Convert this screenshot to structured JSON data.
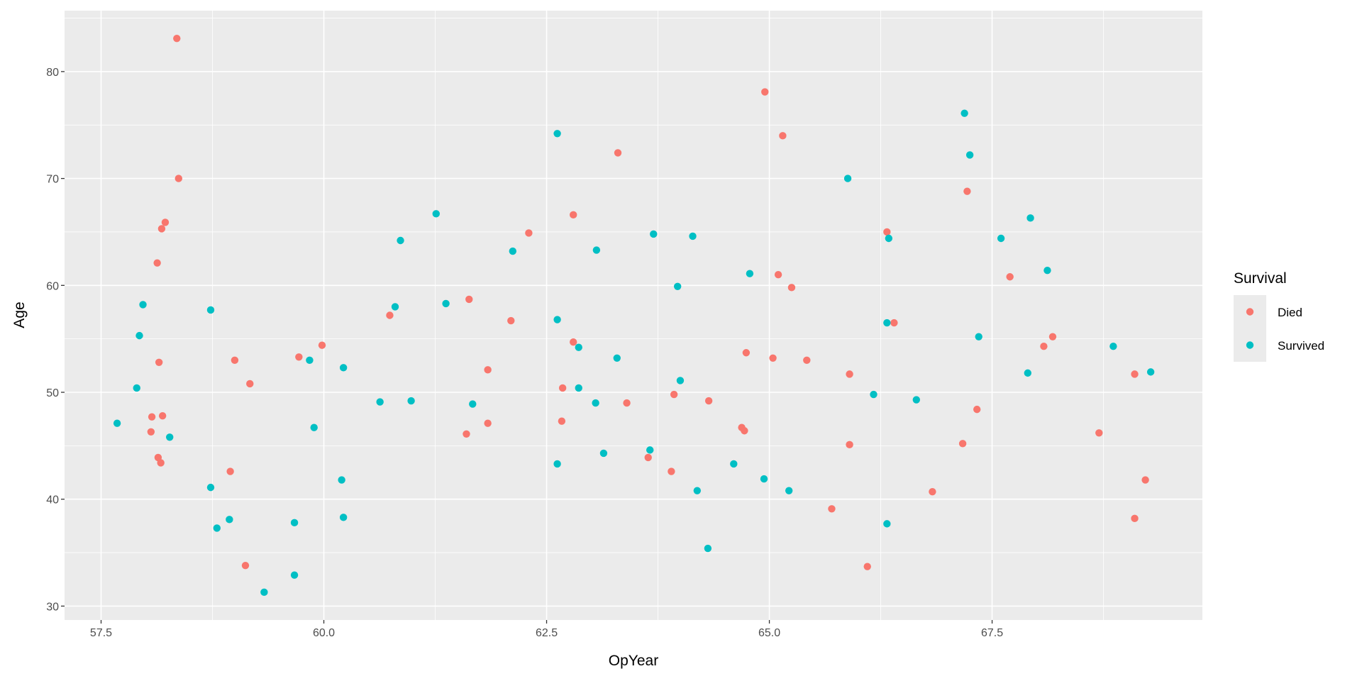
{
  "chart_data": {
    "type": "scatter",
    "title": "",
    "xlabel": "OpYear",
    "ylabel": "Age",
    "xlim": [
      57.09,
      69.86
    ],
    "ylim": [
      28.7,
      85.7
    ],
    "xticks": [
      57.5,
      60.0,
      62.5,
      65.0,
      67.5
    ],
    "xtick_labels": [
      "57.5",
      "60.0",
      "62.5",
      "65.0",
      "67.5"
    ],
    "yticks": [
      30,
      40,
      50,
      60,
      70,
      80
    ],
    "ytick_labels": [
      "30",
      "40",
      "50",
      "60",
      "70",
      "80"
    ],
    "grid": true,
    "legend": {
      "title": "Survival",
      "placement": "right"
    },
    "series": [
      {
        "name": "Died",
        "color": "#F8766D",
        "points": [
          [
            58.35,
            83.1
          ],
          [
            58.37,
            70.0
          ],
          [
            58.22,
            65.9
          ],
          [
            58.18,
            65.3
          ],
          [
            58.13,
            62.1
          ],
          [
            58.15,
            52.8
          ],
          [
            58.07,
            47.7
          ],
          [
            58.19,
            47.8
          ],
          [
            58.06,
            46.3
          ],
          [
            58.14,
            43.9
          ],
          [
            58.17,
            43.4
          ],
          [
            59.0,
            53.0
          ],
          [
            59.17,
            50.8
          ],
          [
            58.95,
            42.6
          ],
          [
            59.12,
            33.8
          ],
          [
            59.72,
            53.3
          ],
          [
            59.98,
            54.4
          ],
          [
            60.74,
            57.2
          ],
          [
            61.63,
            58.7
          ],
          [
            61.6,
            46.1
          ],
          [
            61.84,
            52.1
          ],
          [
            61.84,
            47.1
          ],
          [
            62.1,
            56.7
          ],
          [
            62.3,
            64.9
          ],
          [
            62.8,
            66.6
          ],
          [
            62.8,
            54.7
          ],
          [
            62.68,
            50.4
          ],
          [
            62.67,
            47.3
          ],
          [
            63.3,
            72.4
          ],
          [
            63.4,
            49.0
          ],
          [
            63.64,
            43.9
          ],
          [
            63.9,
            42.6
          ],
          [
            63.93,
            49.8
          ],
          [
            64.32,
            49.2
          ],
          [
            64.69,
            46.7
          ],
          [
            64.72,
            46.4
          ],
          [
            64.74,
            53.7
          ],
          [
            64.95,
            78.1
          ],
          [
            65.15,
            74.0
          ],
          [
            65.1,
            61.0
          ],
          [
            65.25,
            59.8
          ],
          [
            65.04,
            53.2
          ],
          [
            65.42,
            53.0
          ],
          [
            65.9,
            51.7
          ],
          [
            65.9,
            45.1
          ],
          [
            65.7,
            39.1
          ],
          [
            66.1,
            33.7
          ],
          [
            66.32,
            65.0
          ],
          [
            66.4,
            56.5
          ],
          [
            66.83,
            40.7
          ],
          [
            67.22,
            68.8
          ],
          [
            67.17,
            45.2
          ],
          [
            67.33,
            48.4
          ],
          [
            67.7,
            60.8
          ],
          [
            68.08,
            54.3
          ],
          [
            68.18,
            55.2
          ],
          [
            68.7,
            46.2
          ],
          [
            69.1,
            51.7
          ],
          [
            69.1,
            38.2
          ],
          [
            69.22,
            41.8
          ]
        ]
      },
      {
        "name": "Survived",
        "color": "#00BFC4",
        "points": [
          [
            57.68,
            47.1
          ],
          [
            57.93,
            55.3
          ],
          [
            57.97,
            58.2
          ],
          [
            57.9,
            50.4
          ],
          [
            58.27,
            45.8
          ],
          [
            58.73,
            57.7
          ],
          [
            58.73,
            41.1
          ],
          [
            58.8,
            37.3
          ],
          [
            58.94,
            38.1
          ],
          [
            59.33,
            31.3
          ],
          [
            59.67,
            37.8
          ],
          [
            59.67,
            32.9
          ],
          [
            59.84,
            53.0
          ],
          [
            59.89,
            46.7
          ],
          [
            60.22,
            52.3
          ],
          [
            60.2,
            41.8
          ],
          [
            60.22,
            38.3
          ],
          [
            60.63,
            49.1
          ],
          [
            60.8,
            58.0
          ],
          [
            60.86,
            64.2
          ],
          [
            60.98,
            49.2
          ],
          [
            61.26,
            66.7
          ],
          [
            61.37,
            58.3
          ],
          [
            61.67,
            48.9
          ],
          [
            62.12,
            63.2
          ],
          [
            62.62,
            74.2
          ],
          [
            62.62,
            56.8
          ],
          [
            62.62,
            43.3
          ],
          [
            62.86,
            54.2
          ],
          [
            62.86,
            50.4
          ],
          [
            63.05,
            49.0
          ],
          [
            63.06,
            63.3
          ],
          [
            63.14,
            44.3
          ],
          [
            63.29,
            53.2
          ],
          [
            63.66,
            44.6
          ],
          [
            63.7,
            64.8
          ],
          [
            63.97,
            59.9
          ],
          [
            64.0,
            51.1
          ],
          [
            64.14,
            64.6
          ],
          [
            64.19,
            40.8
          ],
          [
            64.31,
            35.4
          ],
          [
            64.6,
            43.3
          ],
          [
            64.78,
            61.1
          ],
          [
            64.94,
            41.9
          ],
          [
            65.22,
            40.8
          ],
          [
            65.88,
            70.0
          ],
          [
            66.17,
            49.8
          ],
          [
            66.32,
            56.5
          ],
          [
            66.34,
            64.4
          ],
          [
            66.32,
            37.7
          ],
          [
            66.65,
            49.3
          ],
          [
            67.19,
            76.1
          ],
          [
            67.25,
            72.2
          ],
          [
            67.35,
            55.2
          ],
          [
            67.6,
            64.4
          ],
          [
            67.93,
            66.3
          ],
          [
            67.9,
            51.8
          ],
          [
            68.12,
            61.4
          ],
          [
            68.86,
            54.3
          ],
          [
            69.28,
            51.9
          ]
        ]
      }
    ]
  }
}
